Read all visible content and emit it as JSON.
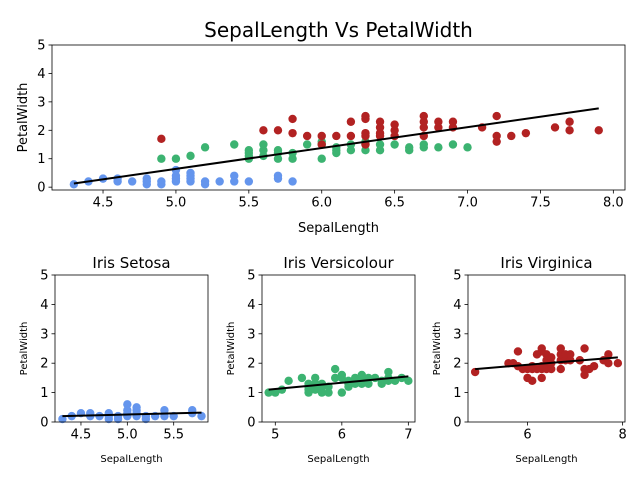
{
  "colors": {
    "setosa": "#6495ED",
    "versicolor": "#3CB371",
    "virginica": "#B22222",
    "fit": "#000000"
  },
  "chart_data": [
    {
      "type": "scatter",
      "title": "SepalLength Vs PetalWidth",
      "xlabel": "SepalLength",
      "ylabel": "PetalWidth",
      "xlim": [
        4.15,
        8.08
      ],
      "ylim": [
        -0.1,
        5
      ],
      "xticks": [
        4.5,
        5.0,
        5.5,
        6.0,
        6.5,
        7.0,
        7.5,
        8.0
      ],
      "xtick_labels": [
        "4.5",
        "5.0",
        "5.5",
        "6.0",
        "6.5",
        "7.0",
        "7.5",
        "8.0"
      ],
      "yticks": [
        0,
        1,
        2,
        3,
        4,
        5
      ],
      "ytick_labels": [
        "0",
        "1",
        "2",
        "3",
        "4",
        "5"
      ],
      "fit_line": {
        "x": [
          4.3,
          7.9
        ],
        "y": [
          0.13,
          2.77
        ]
      },
      "series": [
        {
          "color_key": "setosa",
          "points": [
            [
              4.3,
              0.1
            ],
            [
              4.4,
              0.2
            ],
            [
              4.5,
              0.3
            ],
            [
              4.6,
              0.2
            ],
            [
              4.6,
              0.3
            ],
            [
              4.7,
              0.2
            ],
            [
              4.8,
              0.1
            ],
            [
              4.8,
              0.2
            ],
            [
              4.8,
              0.3
            ],
            [
              4.9,
              0.1
            ],
            [
              4.9,
              0.2
            ],
            [
              5.0,
              0.2
            ],
            [
              5.0,
              0.3
            ],
            [
              5.0,
              0.4
            ],
            [
              5.0,
              0.6
            ],
            [
              5.1,
              0.2
            ],
            [
              5.1,
              0.3
            ],
            [
              5.1,
              0.4
            ],
            [
              5.1,
              0.5
            ],
            [
              5.2,
              0.1
            ],
            [
              5.2,
              0.2
            ],
            [
              5.3,
              0.2
            ],
            [
              5.4,
              0.2
            ],
            [
              5.4,
              0.4
            ],
            [
              5.5,
              0.2
            ],
            [
              5.7,
              0.3
            ],
            [
              5.7,
              0.4
            ],
            [
              5.8,
              0.2
            ]
          ]
        },
        {
          "color_key": "versicolor",
          "points": [
            [
              4.9,
              1.0
            ],
            [
              5.0,
              1.0
            ],
            [
              5.1,
              1.1
            ],
            [
              5.2,
              1.4
            ],
            [
              5.4,
              1.5
            ],
            [
              5.5,
              1.0
            ],
            [
              5.5,
              1.1
            ],
            [
              5.5,
              1.2
            ],
            [
              5.5,
              1.3
            ],
            [
              5.6,
              1.1
            ],
            [
              5.6,
              1.3
            ],
            [
              5.6,
              1.5
            ],
            [
              5.7,
              1.0
            ],
            [
              5.7,
              1.2
            ],
            [
              5.7,
              1.3
            ],
            [
              5.8,
              1.0
            ],
            [
              5.8,
              1.2
            ],
            [
              5.9,
              1.5
            ],
            [
              6.0,
              1.0
            ],
            [
              6.0,
              1.5
            ],
            [
              6.0,
              1.6
            ],
            [
              6.1,
              1.2
            ],
            [
              6.1,
              1.3
            ],
            [
              6.1,
              1.4
            ],
            [
              6.2,
              1.3
            ],
            [
              6.2,
              1.5
            ],
            [
              6.3,
              1.3
            ],
            [
              6.3,
              1.5
            ],
            [
              6.3,
              1.6
            ],
            [
              6.4,
              1.3
            ],
            [
              6.4,
              1.5
            ],
            [
              6.5,
              1.5
            ],
            [
              6.6,
              1.3
            ],
            [
              6.6,
              1.4
            ],
            [
              6.7,
              1.4
            ],
            [
              6.7,
              1.5
            ],
            [
              6.8,
              1.4
            ],
            [
              6.9,
              1.5
            ],
            [
              7.0,
              1.4
            ]
          ]
        },
        {
          "color_key": "virginica",
          "points": [
            [
              4.9,
              1.7
            ],
            [
              5.6,
              2.0
            ],
            [
              5.7,
              2.0
            ],
            [
              5.8,
              1.9
            ],
            [
              5.8,
              2.4
            ],
            [
              5.9,
              1.8
            ],
            [
              6.0,
              1.5
            ],
            [
              6.0,
              1.8
            ],
            [
              6.1,
              1.8
            ],
            [
              6.2,
              1.8
            ],
            [
              6.2,
              2.3
            ],
            [
              6.3,
              1.5
            ],
            [
              6.3,
              1.8
            ],
            [
              6.3,
              1.9
            ],
            [
              6.3,
              2.4
            ],
            [
              6.3,
              2.5
            ],
            [
              6.4,
              1.8
            ],
            [
              6.4,
              1.9
            ],
            [
              6.4,
              2.1
            ],
            [
              6.4,
              2.3
            ],
            [
              6.5,
              1.8
            ],
            [
              6.5,
              2.0
            ],
            [
              6.5,
              2.2
            ],
            [
              6.7,
              1.8
            ],
            [
              6.7,
              2.1
            ],
            [
              6.7,
              2.3
            ],
            [
              6.7,
              2.5
            ],
            [
              6.8,
              2.1
            ],
            [
              6.8,
              2.3
            ],
            [
              6.9,
              2.1
            ],
            [
              6.9,
              2.3
            ],
            [
              7.1,
              2.1
            ],
            [
              7.2,
              1.6
            ],
            [
              7.2,
              1.8
            ],
            [
              7.2,
              2.5
            ],
            [
              7.3,
              1.8
            ],
            [
              7.4,
              1.9
            ],
            [
              7.6,
              2.1
            ],
            [
              7.7,
              2.0
            ],
            [
              7.7,
              2.3
            ],
            [
              7.9,
              2.0
            ]
          ]
        }
      ]
    },
    {
      "type": "scatter",
      "title": "Iris Setosa",
      "xlabel": "SepalLength",
      "ylabel": "PetalWidth",
      "xlim": [
        4.22,
        5.87
      ],
      "ylim": [
        0,
        5
      ],
      "xticks": [
        4.5,
        5.0,
        5.5
      ],
      "xtick_labels": [
        "4.5",
        "5.0",
        "5.5"
      ],
      "yticks": [
        0,
        1,
        2,
        3,
        4,
        5
      ],
      "ytick_labels": [
        "0",
        "1",
        "2",
        "3",
        "4",
        "5"
      ],
      "fit_line": {
        "x": [
          4.3,
          5.8
        ],
        "y": [
          0.2,
          0.32
        ]
      },
      "series": [
        {
          "color_key": "setosa",
          "points": [
            [
              4.3,
              0.1
            ],
            [
              4.4,
              0.2
            ],
            [
              4.5,
              0.3
            ],
            [
              4.6,
              0.2
            ],
            [
              4.6,
              0.3
            ],
            [
              4.7,
              0.2
            ],
            [
              4.8,
              0.1
            ],
            [
              4.8,
              0.2
            ],
            [
              4.8,
              0.3
            ],
            [
              4.9,
              0.1
            ],
            [
              4.9,
              0.2
            ],
            [
              5.0,
              0.2
            ],
            [
              5.0,
              0.3
            ],
            [
              5.0,
              0.4
            ],
            [
              5.0,
              0.6
            ],
            [
              5.1,
              0.2
            ],
            [
              5.1,
              0.3
            ],
            [
              5.1,
              0.4
            ],
            [
              5.1,
              0.5
            ],
            [
              5.2,
              0.1
            ],
            [
              5.2,
              0.2
            ],
            [
              5.3,
              0.2
            ],
            [
              5.4,
              0.2
            ],
            [
              5.4,
              0.4
            ],
            [
              5.5,
              0.2
            ],
            [
              5.7,
              0.3
            ],
            [
              5.7,
              0.4
            ],
            [
              5.8,
              0.2
            ]
          ]
        }
      ]
    },
    {
      "type": "scatter",
      "title": "Iris Versicolour",
      "xlabel": "SepalLength",
      "ylabel": "PetalWidth",
      "xlim": [
        4.8,
        7.1
      ],
      "ylim": [
        0,
        5
      ],
      "xticks": [
        5,
        6,
        7
      ],
      "xtick_labels": [
        "5",
        "6",
        "7"
      ],
      "yticks": [
        0,
        1,
        2,
        3,
        4,
        5
      ],
      "ytick_labels": [
        "0",
        "1",
        "2",
        "3",
        "4",
        "5"
      ],
      "fit_line": {
        "x": [
          4.9,
          7.0
        ],
        "y": [
          1.1,
          1.55
        ]
      },
      "series": [
        {
          "color_key": "versicolor",
          "points": [
            [
              4.9,
              1.0
            ],
            [
              5.0,
              1.0
            ],
            [
              5.1,
              1.1
            ],
            [
              5.2,
              1.4
            ],
            [
              5.4,
              1.5
            ],
            [
              5.5,
              1.0
            ],
            [
              5.5,
              1.1
            ],
            [
              5.5,
              1.2
            ],
            [
              5.5,
              1.3
            ],
            [
              5.6,
              1.1
            ],
            [
              5.6,
              1.3
            ],
            [
              5.6,
              1.5
            ],
            [
              5.7,
              1.0
            ],
            [
              5.7,
              1.2
            ],
            [
              5.7,
              1.3
            ],
            [
              5.8,
              1.0
            ],
            [
              5.8,
              1.2
            ],
            [
              5.9,
              1.5
            ],
            [
              5.9,
              1.8
            ],
            [
              6.0,
              1.0
            ],
            [
              6.0,
              1.5
            ],
            [
              6.0,
              1.6
            ],
            [
              6.1,
              1.2
            ],
            [
              6.1,
              1.3
            ],
            [
              6.1,
              1.4
            ],
            [
              6.2,
              1.3
            ],
            [
              6.2,
              1.5
            ],
            [
              6.3,
              1.3
            ],
            [
              6.3,
              1.5
            ],
            [
              6.3,
              1.6
            ],
            [
              6.4,
              1.3
            ],
            [
              6.4,
              1.5
            ],
            [
              6.5,
              1.5
            ],
            [
              6.6,
              1.3
            ],
            [
              6.6,
              1.4
            ],
            [
              6.7,
              1.4
            ],
            [
              6.7,
              1.5
            ],
            [
              6.7,
              1.7
            ],
            [
              6.8,
              1.4
            ],
            [
              6.9,
              1.5
            ],
            [
              7.0,
              1.4
            ]
          ]
        }
      ]
    },
    {
      "type": "scatter",
      "title": "Iris Virginica",
      "xlabel": "SepalLength",
      "ylabel": "PetalWidth",
      "xlim": [
        4.75,
        8.05
      ],
      "ylim": [
        0,
        5
      ],
      "xticks": [
        6,
        8
      ],
      "xtick_labels": [
        "6",
        "8"
      ],
      "yticks": [
        0,
        1,
        2,
        3,
        4,
        5
      ],
      "ytick_labels": [
        "0",
        "1",
        "2",
        "3",
        "4",
        "5"
      ],
      "fit_line": {
        "x": [
          4.9,
          7.9
        ],
        "y": [
          1.8,
          2.2
        ]
      },
      "series": [
        {
          "color_key": "virginica",
          "points": [
            [
              4.9,
              1.7
            ],
            [
              5.6,
              2.0
            ],
            [
              5.7,
              2.0
            ],
            [
              5.8,
              1.9
            ],
            [
              5.8,
              2.4
            ],
            [
              5.9,
              1.8
            ],
            [
              6.0,
              1.5
            ],
            [
              6.0,
              1.8
            ],
            [
              6.1,
              1.4
            ],
            [
              6.1,
              1.8
            ],
            [
              6.1,
              1.9
            ],
            [
              6.2,
              1.8
            ],
            [
              6.2,
              2.3
            ],
            [
              6.3,
              1.5
            ],
            [
              6.3,
              1.8
            ],
            [
              6.3,
              1.9
            ],
            [
              6.3,
              2.4
            ],
            [
              6.3,
              2.5
            ],
            [
              6.4,
              1.8
            ],
            [
              6.4,
              1.9
            ],
            [
              6.4,
              2.1
            ],
            [
              6.4,
              2.3
            ],
            [
              6.5,
              1.8
            ],
            [
              6.5,
              2.0
            ],
            [
              6.5,
              2.2
            ],
            [
              6.7,
              1.8
            ],
            [
              6.7,
              2.1
            ],
            [
              6.7,
              2.3
            ],
            [
              6.7,
              2.5
            ],
            [
              6.8,
              2.1
            ],
            [
              6.8,
              2.3
            ],
            [
              6.9,
              2.1
            ],
            [
              6.9,
              2.3
            ],
            [
              7.1,
              2.1
            ],
            [
              7.2,
              1.6
            ],
            [
              7.2,
              1.8
            ],
            [
              7.2,
              2.5
            ],
            [
              7.3,
              1.8
            ],
            [
              7.4,
              1.9
            ],
            [
              7.6,
              2.1
            ],
            [
              7.7,
              2.0
            ],
            [
              7.7,
              2.3
            ],
            [
              7.9,
              2.0
            ]
          ]
        }
      ]
    }
  ]
}
